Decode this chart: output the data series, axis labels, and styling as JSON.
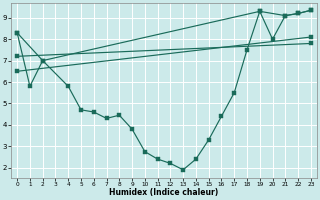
{
  "xlabel": "Humidex (Indice chaleur)",
  "bg_color": "#cceaea",
  "line_color": "#1a6b5a",
  "grid_color": "#ffffff",
  "xlim": [
    -0.5,
    23.5
  ],
  "ylim": [
    1.5,
    9.7
  ],
  "yticks": [
    2,
    3,
    4,
    5,
    6,
    7,
    8,
    9
  ],
  "xticks": [
    0,
    1,
    2,
    3,
    4,
    5,
    6,
    7,
    8,
    9,
    10,
    11,
    12,
    13,
    14,
    15,
    16,
    17,
    18,
    19,
    20,
    21,
    22,
    23
  ],
  "line1_x": [
    0,
    1,
    2,
    4,
    5,
    6,
    7,
    8,
    9,
    10,
    11,
    12,
    13,
    14,
    15,
    16,
    17,
    18,
    19,
    20,
    21,
    22,
    23
  ],
  "line1_y": [
    8.3,
    5.8,
    7.0,
    5.8,
    4.7,
    4.6,
    4.3,
    4.45,
    3.8,
    2.75,
    2.4,
    2.2,
    1.9,
    2.4,
    3.3,
    4.4,
    5.5,
    7.5,
    9.3,
    8.0,
    9.1,
    9.2,
    9.35
  ],
  "line2_x": [
    0,
    2,
    19,
    21,
    22,
    23
  ],
  "line2_y": [
    8.3,
    7.0,
    9.3,
    9.1,
    9.2,
    9.35
  ],
  "line3_x": [
    0,
    23
  ],
  "line3_y": [
    6.5,
    8.1
  ],
  "line4_x": [
    0,
    23
  ],
  "line4_y": [
    7.2,
    7.8
  ]
}
